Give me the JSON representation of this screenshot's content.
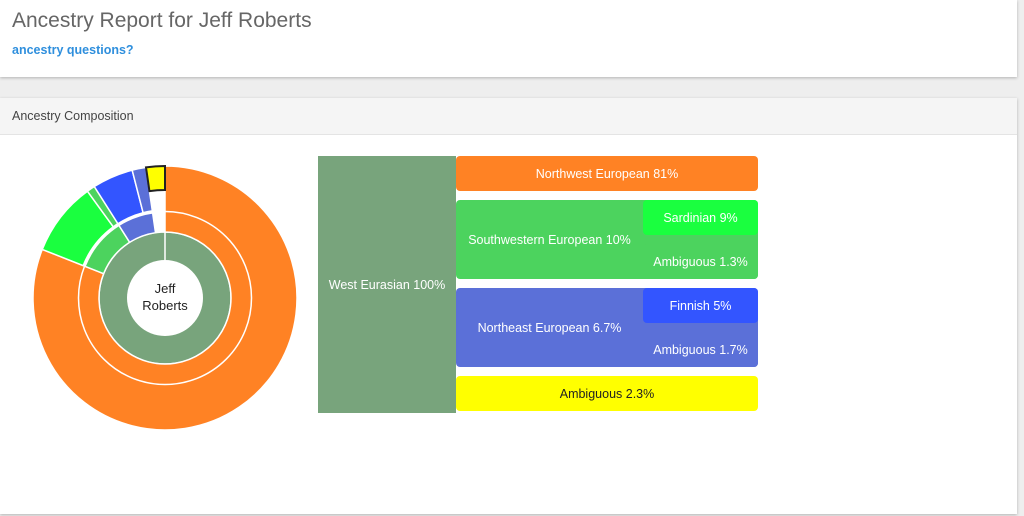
{
  "header": {
    "title": "Ancestry Report for Jeff Roberts",
    "help_link": "ancestry questions?"
  },
  "panel": {
    "title": "Ancestry Composition"
  },
  "donut": {
    "center_line1": "Jeff",
    "center_line2": "Roberts"
  },
  "chart_data": {
    "type": "sunburst",
    "root": {
      "label": "West Eurasian 100%",
      "value": 100,
      "color": "#78a47c"
    },
    "groups": [
      {
        "label": "Northwest European 81%",
        "value": 81,
        "color": "#ff8224",
        "children": []
      },
      {
        "label": "Southwestern European 10%",
        "value": 10,
        "color": "#4cd35e",
        "children": [
          {
            "label": "Sardinian 9%",
            "value": 9,
            "color": "#1aff3f"
          },
          {
            "label": "Ambiguous 1.3%",
            "value": 1.3,
            "color": "#4cd35e"
          }
        ]
      },
      {
        "label": "Northeast European 6.7%",
        "value": 6.7,
        "color": "#5b70d8",
        "children": [
          {
            "label": "Finnish 5%",
            "value": 5,
            "color": "#3355ff"
          },
          {
            "label": "Ambiguous 1.7%",
            "value": 1.7,
            "color": "#5b70d8"
          }
        ]
      },
      {
        "label": "Ambiguous 2.3%",
        "value": 2.3,
        "color": "#ffff00",
        "children": []
      }
    ]
  }
}
